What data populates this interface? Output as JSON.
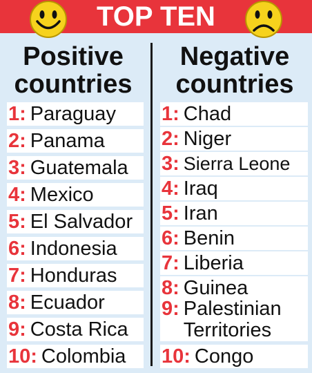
{
  "banner": {
    "title": "TOP TEN",
    "colors": {
      "background": "#e8343b",
      "text": "#ffffff",
      "face": "#f6d21d"
    },
    "icons": [
      "smiley-happy-icon",
      "smiley-sad-icon"
    ]
  },
  "left": {
    "heading_line1": "Positive",
    "heading_line2": "countries",
    "items": [
      {
        "num": "1:",
        "name": "Paraguay"
      },
      {
        "num": "2:",
        "name": "Panama"
      },
      {
        "num": "3:",
        "name": "Guatemala"
      },
      {
        "num": "4:",
        "name": "Mexico"
      },
      {
        "num": "5:",
        "name": "El Salvador"
      },
      {
        "num": "6:",
        "name": "Indonesia"
      },
      {
        "num": "7:",
        "name": "Honduras"
      },
      {
        "num": "8:",
        "name": "Ecuador"
      },
      {
        "num": "9:",
        "name": "Costa Rica"
      },
      {
        "num": "10:",
        "name": "Colombia"
      }
    ]
  },
  "right": {
    "heading_line1": "Negative",
    "heading_line2": "countries",
    "items": [
      {
        "num": "1:",
        "name": "Chad"
      },
      {
        "num": "2:",
        "name": "Niger"
      },
      {
        "num": "3:",
        "name": "Sierra Leone"
      },
      {
        "num": "4:",
        "name": "Iraq"
      },
      {
        "num": "5:",
        "name": "Iran"
      },
      {
        "num": "6:",
        "name": "Benin"
      },
      {
        "num": "7:",
        "name": "Liberia"
      },
      {
        "num": "8:",
        "name": "Guinea"
      },
      {
        "num": "9:",
        "name": "Palestinian Territories"
      },
      {
        "num": "10:",
        "name": "Congo"
      }
    ]
  }
}
